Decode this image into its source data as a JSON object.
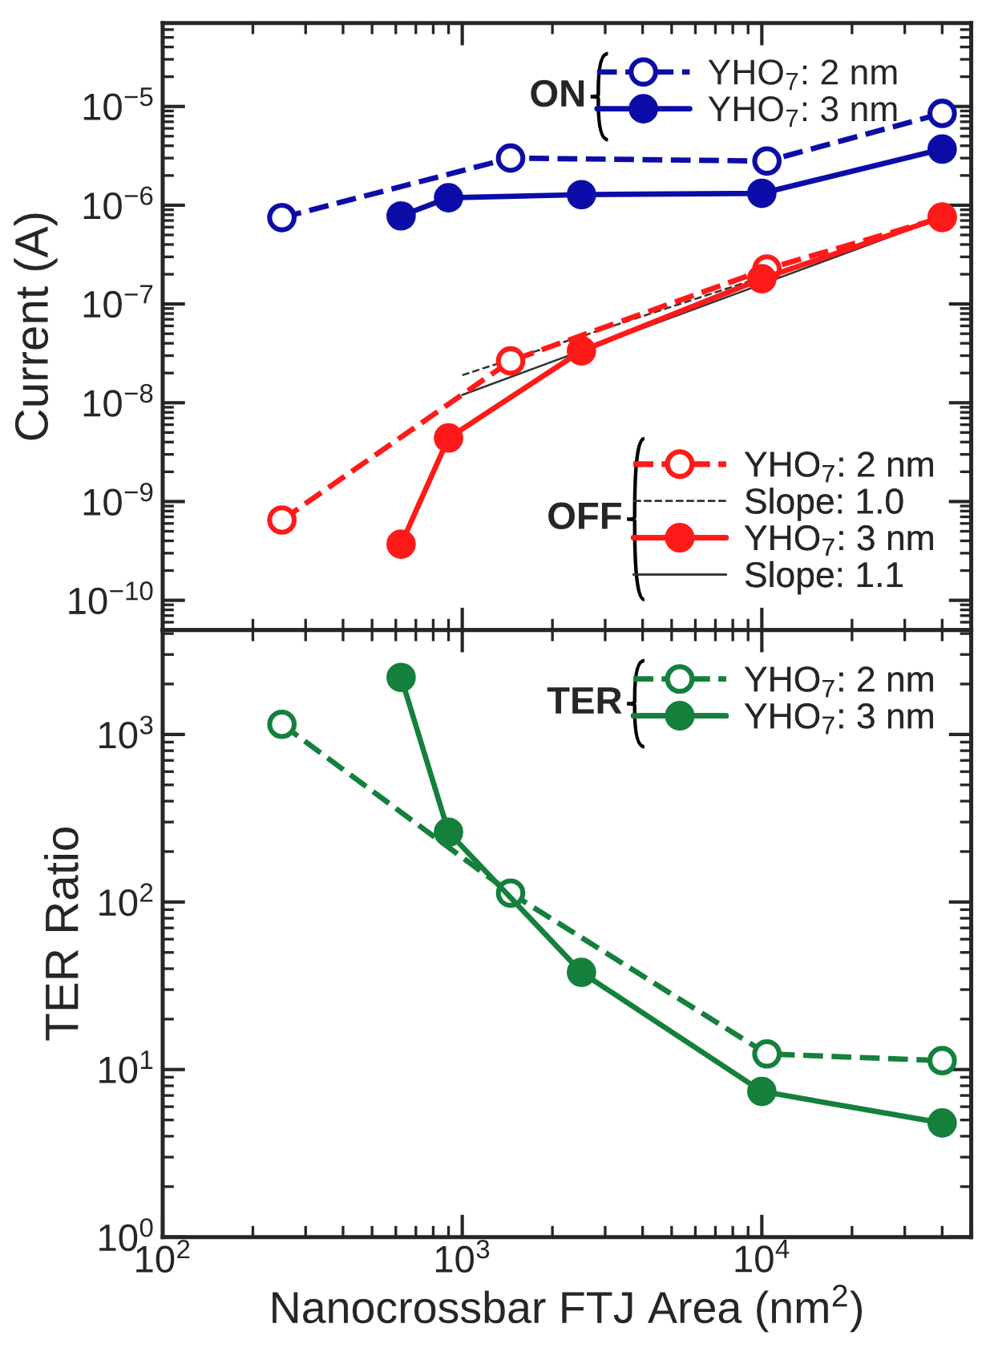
{
  "chart_data": [
    {
      "type": "line",
      "ylabel": "Current (A)",
      "log": "xy",
      "xlim": [
        100,
        50000
      ],
      "ylim": [
        5e-11,
        7e-05
      ],
      "xticks": [
        {
          "value": 100,
          "label": null
        },
        {
          "value": 1000,
          "label": null
        },
        {
          "value": 10000,
          "label": null
        }
      ],
      "yticks": [
        {
          "value": 1e-10,
          "label": "10$^{−10}$"
        },
        {
          "value": 1e-09,
          "label": "10$^{−9}$"
        },
        {
          "value": 1e-08,
          "label": "10$^{−8}$"
        },
        {
          "value": 1e-07,
          "label": "10$^{−7}$"
        },
        {
          "value": 1e-06,
          "label": "10$^{−6}$"
        },
        {
          "value": 1e-05,
          "label": "10$^{−5}$"
        }
      ],
      "tick_labels": "y",
      "legend": "right",
      "marker": "circle",
      "grid": false,
      "annotations": [
        "ON",
        "OFF"
      ],
      "series": [
        {
          "name": "YHO$_{7}$: 2 nm",
          "color": "#0c0ca8",
          "line_style": "dashed",
          "x": [
            250,
            1450,
            10400,
            40000
          ],
          "values": [
            7.5e-07,
            3e-06,
            2.8e-06,
            8.5e-06
          ]
        },
        {
          "name": "YHO$_{7}$: 3 nm",
          "color": "#0c0ca8",
          "line_style": "solid",
          "x": [
            625,
            900,
            2500,
            10000,
            40000
          ],
          "values": [
            7.8e-07,
            1.19e-06,
            1.28e-06,
            1.32e-06,
            3.7e-06
          ]
        },
        {
          "name": "YHO$_{7}$: 2 nm",
          "color": "#ff1a1a",
          "line_style": "dashed",
          "x": [
            250,
            1450,
            10400,
            40000
          ],
          "values": [
            6.5e-10,
            2.65e-08,
            2.26e-07,
            7.5e-07
          ]
        },
        {
          "name": "Slope: 1.0",
          "color": "#333333",
          "line_style": "dashed",
          "marker": "none",
          "x": [
            1000,
            40000
          ],
          "values": [
            1.9e-08,
            7.4e-07
          ]
        },
        {
          "name": "YHO$_{7}$: 3 nm",
          "color": "#ff1a1a",
          "line_style": "solid",
          "x": [
            625,
            900,
            2500,
            10000,
            40000
          ],
          "values": [
            3.7e-10,
            4.4e-09,
            3.35e-08,
            1.8e-07,
            7.6e-07
          ]
        },
        {
          "name": "Slope: 1.1",
          "color": "#333333",
          "line_style": "solid",
          "marker": "none",
          "x": [
            1000,
            40000
          ],
          "values": [
            1.2e-08,
            7.5e-07
          ]
        }
      ]
    },
    {
      "type": "line",
      "xlabel": "Nanocrossbar FTJ Area (nm$^{2}$)",
      "ylabel": "TER Ratio",
      "log": "xy",
      "xlim": [
        100,
        50000
      ],
      "ylim": [
        1,
        4200
      ],
      "xticks": [
        {
          "value": 100,
          "label": "10$^{2}$"
        },
        {
          "value": 1000,
          "label": "10$^{3}$"
        },
        {
          "value": 10000,
          "label": "10$^{4}$"
        }
      ],
      "yticks": [
        {
          "value": 1,
          "label": "10$^{0}$"
        },
        {
          "value": 10,
          "label": "10$^{1}$"
        },
        {
          "value": 100,
          "label": "10$^{2}$"
        },
        {
          "value": 1000,
          "label": "10$^{3}$"
        }
      ],
      "legend": "top right",
      "marker": "circle",
      "grid": false,
      "annotations": [
        "TER"
      ],
      "series": [
        {
          "name": "YHO$_{7}$: 2 nm",
          "color": "#14803c",
          "line_style": "dashed",
          "x": [
            250,
            1450,
            10400,
            40000
          ],
          "values": [
            1150,
            113,
            12.4,
            11.3
          ]
        },
        {
          "name": "YHO$_{7}$: 3 nm",
          "color": "#14803c",
          "line_style": "solid",
          "x": [
            625,
            900,
            2500,
            10000,
            40000
          ],
          "values": [
            2190,
            261,
            38,
            7.4,
            4.8
          ]
        }
      ]
    }
  ]
}
